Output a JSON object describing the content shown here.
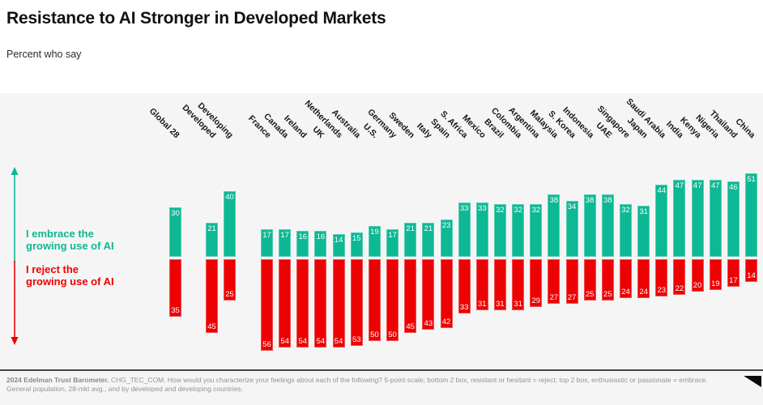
{
  "header": {
    "title": "Resistance to AI Stronger in Developed Markets",
    "subtitle": "Percent who say"
  },
  "legend": {
    "embrace_line1": "I embrace the",
    "embrace_line2": "growing use of AI",
    "reject_line1": "I reject the",
    "reject_line2": "growing use of AI"
  },
  "colors": {
    "embrace": "#0db894",
    "reject": "#ec0202",
    "chart_background": "#f5f5f5",
    "value_label_text": "#ffffff"
  },
  "chart_data": {
    "type": "bar",
    "variant": "diverging-vertical",
    "title": "Resistance to AI Stronger in Developed Markets",
    "units": "percent",
    "axis": "hidden",
    "value_labels": "shown",
    "categories": [
      "Global 28",
      "Developed",
      "Developing",
      "France",
      "Canada",
      "Ireland",
      "UK",
      "Netherlands",
      "Australia",
      "U.S.",
      "Germany",
      "Sweden",
      "Italy",
      "Spain",
      "S. Africa",
      "Mexico",
      "Brazil",
      "Colombia",
      "Argentina",
      "Malaysia",
      "S. Korea",
      "Indonesia",
      "UAE",
      "Singapore",
      "Japan",
      "Saudi Arabia",
      "India",
      "Kenya",
      "Nigeria",
      "Thailand",
      "China"
    ],
    "series": [
      {
        "name": "I embrace the growing use of AI",
        "direction": "up",
        "color": "#0db894",
        "values": [
          30,
          21,
          40,
          17,
          17,
          16,
          16,
          14,
          15,
          19,
          17,
          21,
          21,
          23,
          33,
          33,
          32,
          32,
          32,
          38,
          34,
          38,
          38,
          32,
          31,
          44,
          47,
          47,
          47,
          46,
          51
        ]
      },
      {
        "name": "I reject the growing use of AI",
        "direction": "down",
        "color": "#ec0202",
        "values": [
          35,
          45,
          25,
          56,
          54,
          54,
          54,
          54,
          53,
          50,
          50,
          45,
          43,
          42,
          33,
          31,
          31,
          31,
          29,
          27,
          27,
          25,
          25,
          24,
          24,
          23,
          22,
          20,
          19,
          17,
          14
        ]
      }
    ],
    "group_gaps_before": [
      "Developed",
      "France"
    ]
  },
  "footer": {
    "source_bold": "2024 Edelman Trust Barometer.",
    "line1": "CHG_TEC_COM. How would you characterize your feelings about each of the following? 5-point scale; bottom 2 box, resistant or hesitant = reject; top 2 box, enthusiastic or passionate = embrace.",
    "line2": "General population, 28-mkt avg., and by developed and developing countries."
  }
}
